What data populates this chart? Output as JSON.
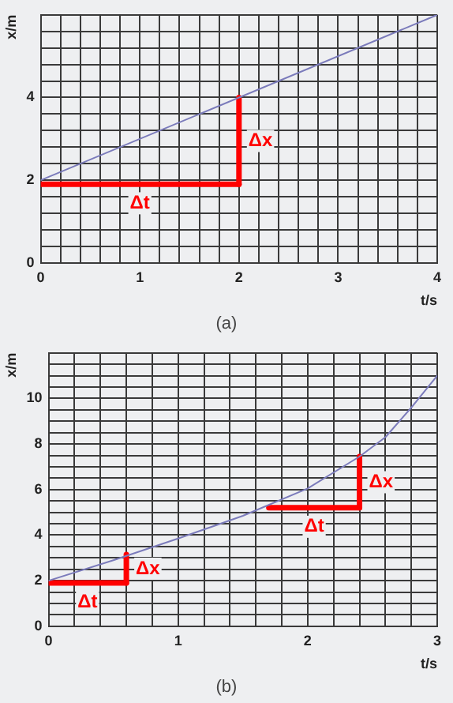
{
  "chart_data": [
    {
      "type": "line",
      "xlabel": "t/s",
      "ylabel": "x/m",
      "xlim": [
        0,
        4
      ],
      "ylim": [
        0,
        6
      ],
      "grid": true,
      "legend": false,
      "marker": "none",
      "xticks": [
        0,
        {
          "value": 0.2,
          "label": null
        },
        {
          "value": 0.4,
          "label": null
        },
        {
          "value": 0.6,
          "label": null
        },
        {
          "value": 0.8,
          "label": null
        },
        1,
        {
          "value": 1.2,
          "label": null
        },
        {
          "value": 1.4,
          "label": null
        },
        {
          "value": 1.6,
          "label": null
        },
        {
          "value": 1.8,
          "label": null
        },
        2,
        {
          "value": 2.2,
          "label": null
        },
        {
          "value": 2.4,
          "label": null
        },
        {
          "value": 2.6,
          "label": null
        },
        {
          "value": 2.8,
          "label": null
        },
        3,
        {
          "value": 3.2,
          "label": null
        },
        {
          "value": 3.4,
          "label": null
        },
        {
          "value": 3.6,
          "label": null
        },
        {
          "value": 3.8,
          "label": null
        },
        4
      ],
      "yticks": [
        0,
        {
          "value": 0.4,
          "label": null
        },
        {
          "value": 0.8,
          "label": null
        },
        {
          "value": 1.2,
          "label": null
        },
        {
          "value": 1.6,
          "label": null
        },
        2,
        {
          "value": 2.4,
          "label": null
        },
        {
          "value": 2.8,
          "label": null
        },
        {
          "value": 3.2,
          "label": null
        },
        {
          "value": 3.6,
          "label": null
        },
        4,
        {
          "value": 4.4,
          "label": null
        },
        {
          "value": 4.8,
          "label": null
        },
        {
          "value": 5.2,
          "label": null
        },
        {
          "value": 5.6,
          "label": null
        },
        {
          "value": 6,
          "label": null
        }
      ],
      "series": [
        {
          "color": "#7b7bbb",
          "x": [
            0,
            4
          ],
          "values": [
            2,
            6
          ]
        },
        {
          "name": "Δt",
          "color": "#ff0000",
          "x": [
            0,
            2
          ],
          "values": [
            1.9,
            1.9
          ]
        },
        {
          "name": "Δx",
          "color": "#ff0000",
          "x": [
            2,
            2
          ],
          "values": [
            1.9,
            4
          ]
        }
      ],
      "annotations": [
        "(a)"
      ]
    },
    {
      "type": "line",
      "xlabel": "t/s",
      "ylabel": "x/m",
      "xlim": [
        0,
        3
      ],
      "ylim": [
        0,
        12
      ],
      "grid": true,
      "legend": false,
      "marker": "none",
      "xticks": [
        0,
        {
          "value": 0.2,
          "label": null
        },
        {
          "value": 0.4,
          "label": null
        },
        {
          "value": 0.6,
          "label": null
        },
        {
          "value": 0.8,
          "label": null
        },
        1,
        {
          "value": 1.2,
          "label": null
        },
        {
          "value": 1.4,
          "label": null
        },
        {
          "value": 1.6,
          "label": null
        },
        {
          "value": 1.8,
          "label": null
        },
        2,
        {
          "value": 2.2,
          "label": null
        },
        {
          "value": 2.4,
          "label": null
        },
        {
          "value": 2.6,
          "label": null
        },
        {
          "value": 2.8,
          "label": null
        },
        3
      ],
      "yticks": [
        0,
        {
          "value": 0.5,
          "label": null
        },
        {
          "value": 1,
          "label": null
        },
        {
          "value": 1.5,
          "label": null
        },
        2,
        {
          "value": 2.5,
          "label": null
        },
        {
          "value": 3,
          "label": null
        },
        {
          "value": 3.5,
          "label": null
        },
        4,
        {
          "value": 4.5,
          "label": null
        },
        {
          "value": 5,
          "label": null
        },
        {
          "value": 5.5,
          "label": null
        },
        6,
        {
          "value": 6.5,
          "label": null
        },
        {
          "value": 7,
          "label": null
        },
        {
          "value": 7.5,
          "label": null
        },
        8,
        {
          "value": 8.5,
          "label": null
        },
        {
          "value": 9,
          "label": null
        },
        {
          "value": 9.5,
          "label": null
        },
        10,
        {
          "value": 10.5,
          "label": null
        },
        {
          "value": 11,
          "label": null
        },
        {
          "value": 11.5,
          "label": null
        },
        {
          "value": 12,
          "label": null
        }
      ],
      "series": [
        {
          "color": "#7b7bbb",
          "x": [
            0,
            0.5,
            1,
            1.5,
            2,
            2.4,
            2.6,
            2.8,
            3
          ],
          "values": [
            2,
            2.9,
            3.85,
            4.85,
            6.05,
            7.45,
            8.3,
            9.6,
            11
          ]
        },
        {
          "name": "Δt",
          "color": "#ff0000",
          "x": [
            0,
            0.6
          ],
          "values": [
            1.9,
            1.9
          ]
        },
        {
          "name": "Δx",
          "color": "#ff0000",
          "x": [
            0.6,
            0.6
          ],
          "values": [
            1.9,
            3.15
          ]
        },
        {
          "name": "Δt",
          "color": "#ff0000",
          "x": [
            1.7,
            2.4
          ],
          "values": [
            5.2,
            5.2
          ]
        },
        {
          "name": "Δx",
          "color": "#ff0000",
          "x": [
            2.4,
            2.4
          ],
          "values": [
            5.2,
            7.45
          ]
        }
      ],
      "annotations": [
        "(b)"
      ]
    }
  ]
}
